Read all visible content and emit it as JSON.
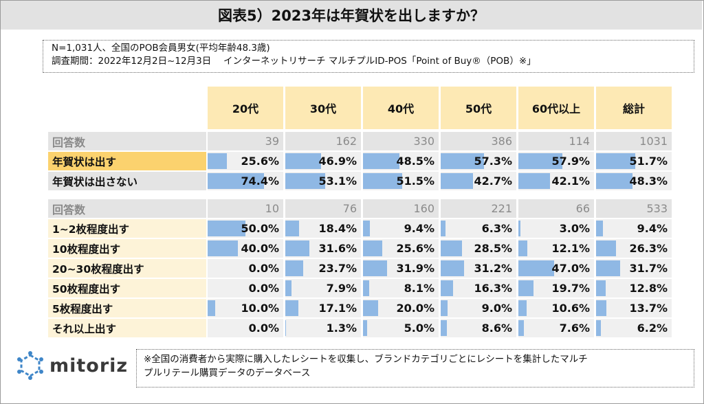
{
  "title": "図表5）2023年は年賀状を出しますか？",
  "info_line1": "N=1,031人、全国のPOB会員男女(平均年齢48.3歳)",
  "info_line2": "調査期間：2022年12月2日~12月3日　 インターネットリサーチ マルチプルID-POS「Point of Buy®（POB）※」",
  "footnote_line1": "※全国の消費者から実際に購入したレシートを収集し、ブランドカテゴリごとにレシートを集計したマルチ",
  "footnote_line2": "プルリテール購買データのデータベース",
  "logo_text": "mitoriz",
  "colors": {
    "bar": "#8fb8e4",
    "header_bg": "#fde9b4",
    "count_bg": "#e4e4e4",
    "highlight_label": "#fbd26e",
    "cell_bg": "#f0f0f0"
  },
  "chart_data": {
    "type": "table",
    "columns": [
      "20代",
      "30代",
      "40代",
      "50代",
      "60代以上",
      "総計"
    ],
    "sections": [
      {
        "count_label": "回答数",
        "counts": [
          "39",
          "162",
          "330",
          "386",
          "114",
          "1031"
        ],
        "rows": [
          {
            "label": "年賀状は出す",
            "values": [
              25.6,
              46.9,
              48.5,
              57.3,
              57.9,
              51.7
            ],
            "display": [
              "25.6%",
              "46.9%",
              "48.5%",
              "57.3%",
              "57.9%",
              "51.7%"
            ],
            "highlight": true
          },
          {
            "label": "年賀状は出さない",
            "values": [
              74.4,
              53.1,
              51.5,
              42.7,
              42.1,
              48.3
            ],
            "display": [
              "74.4%",
              "53.1%",
              "51.5%",
              "42.7%",
              "42.1%",
              "48.3%"
            ]
          }
        ]
      },
      {
        "count_label": "回答数",
        "counts": [
          "10",
          "76",
          "160",
          "221",
          "66",
          "533"
        ],
        "rows": [
          {
            "label": "1~2枚程度出す",
            "values": [
              50.0,
              18.4,
              9.4,
              6.3,
              3.0,
              9.4
            ],
            "display": [
              "50.0%",
              "18.4%",
              "9.4%",
              "6.3%",
              "3.0%",
              "9.4%"
            ]
          },
          {
            "label": "10枚程度出す",
            "values": [
              40.0,
              31.6,
              25.6,
              28.5,
              12.1,
              26.3
            ],
            "display": [
              "40.0%",
              "31.6%",
              "25.6%",
              "28.5%",
              "12.1%",
              "26.3%"
            ]
          },
          {
            "label": "20~30枚程度出す",
            "values": [
              0.0,
              23.7,
              31.9,
              31.2,
              47.0,
              31.7
            ],
            "display": [
              "0.0%",
              "23.7%",
              "31.9%",
              "31.2%",
              "47.0%",
              "31.7%"
            ]
          },
          {
            "label": "50枚程度出す",
            "values": [
              0.0,
              7.9,
              8.1,
              16.3,
              19.7,
              12.8
            ],
            "display": [
              "0.0%",
              "7.9%",
              "8.1%",
              "16.3%",
              "19.7%",
              "12.8%"
            ]
          },
          {
            "label": "5枚程度出す",
            "values": [
              10.0,
              17.1,
              20.0,
              9.0,
              10.6,
              13.7
            ],
            "display": [
              "10.0%",
              "17.1%",
              "20.0%",
              "9.0%",
              "10.6%",
              "13.7%"
            ]
          },
          {
            "label": "それ以上出す",
            "values": [
              0.0,
              1.3,
              5.0,
              8.6,
              7.6,
              6.2
            ],
            "display": [
              "0.0%",
              "1.3%",
              "5.0%",
              "8.6%",
              "7.6%",
              "6.2%"
            ]
          }
        ]
      }
    ]
  }
}
